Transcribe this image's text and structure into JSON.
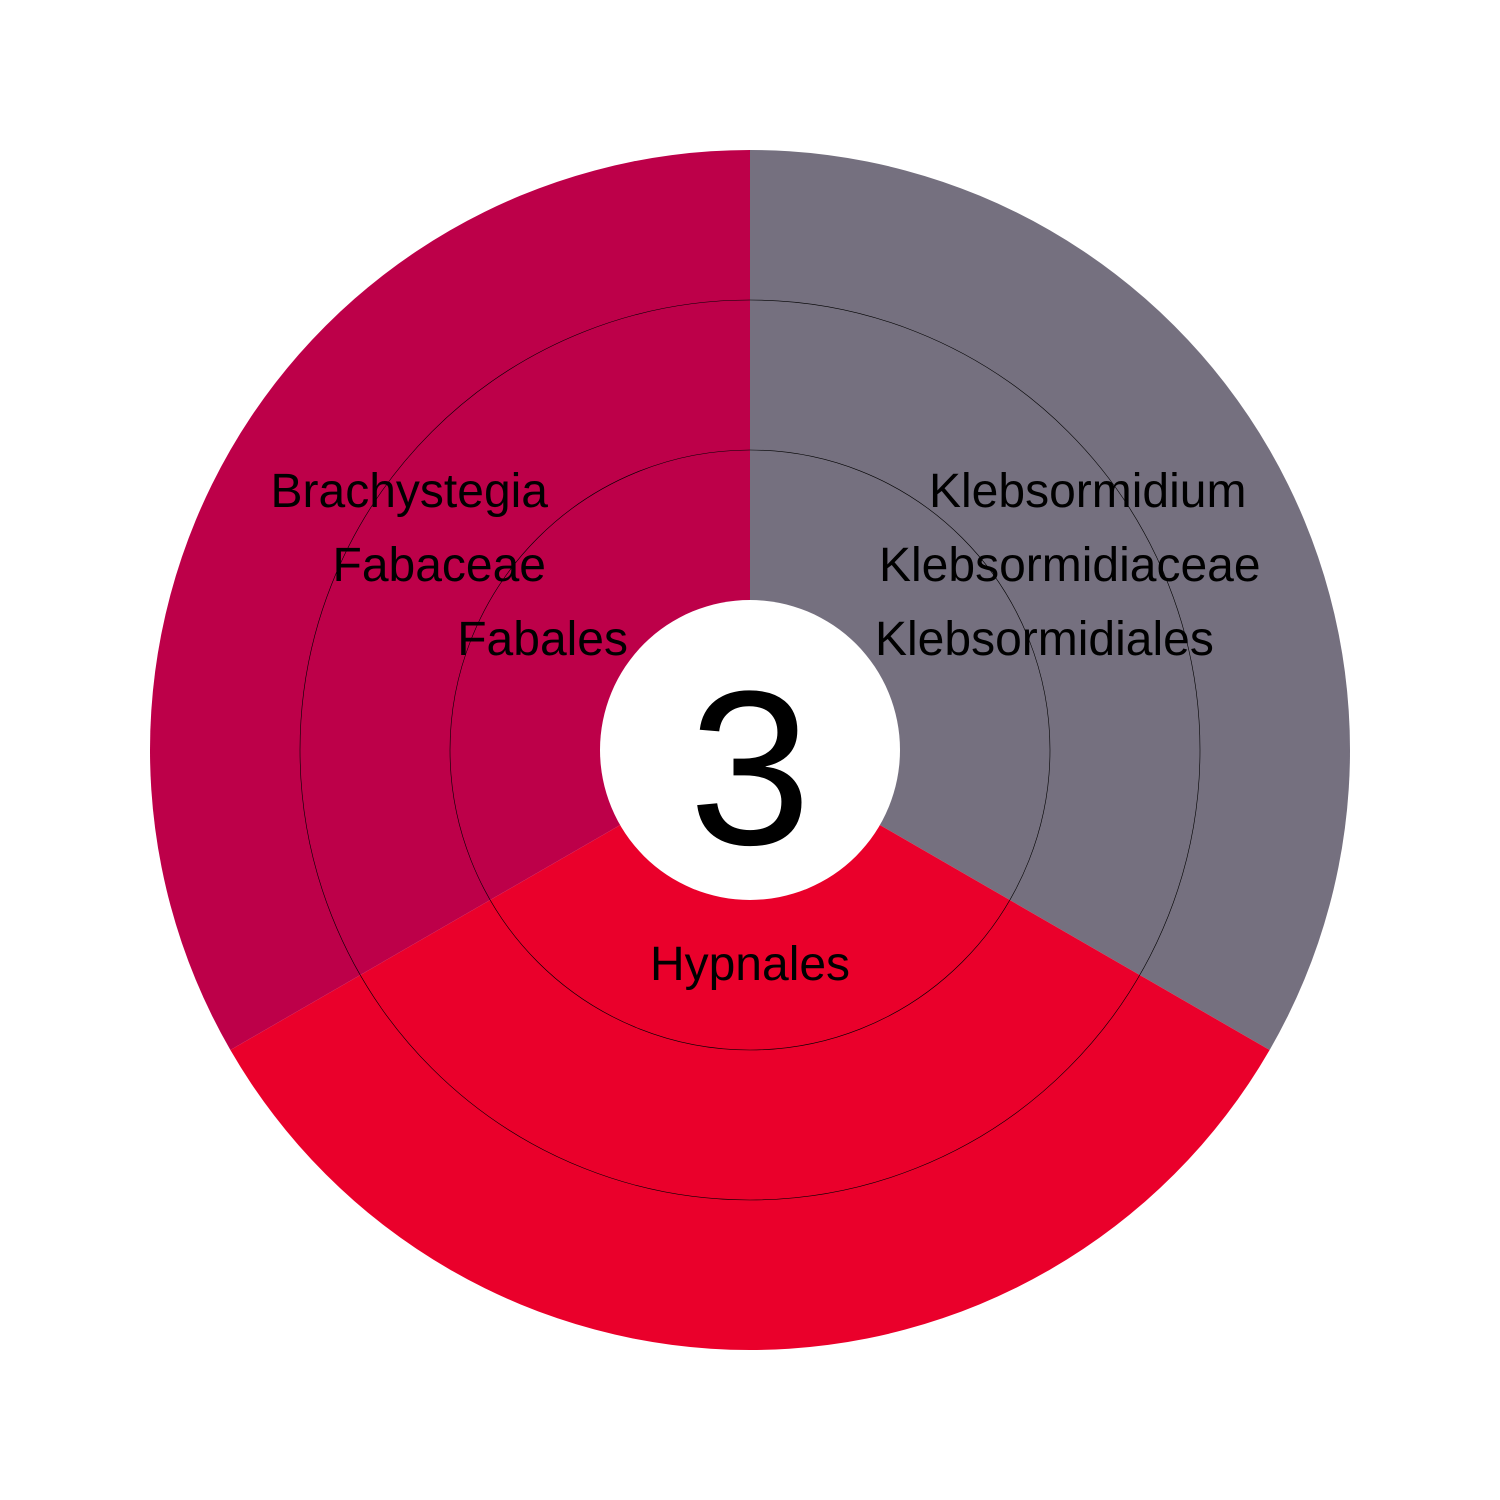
{
  "chart_data": {
    "type": "pie",
    "center_label": "3",
    "slices": [
      {
        "name": "Klebsormidiales",
        "value": 1,
        "color": "#75707f",
        "lineage": [
          "Klebsormidiales",
          "Klebsormidiaceae",
          "Klebsormidium"
        ]
      },
      {
        "name": "Hypnales",
        "value": 1,
        "color": "#ea002b",
        "lineage": [
          "Hypnales"
        ]
      },
      {
        "name": "Fabales",
        "value": 1,
        "color": "#bd0049",
        "lineage": [
          "Fabales",
          "Fabaceae",
          "Brachystegia"
        ]
      }
    ]
  }
}
